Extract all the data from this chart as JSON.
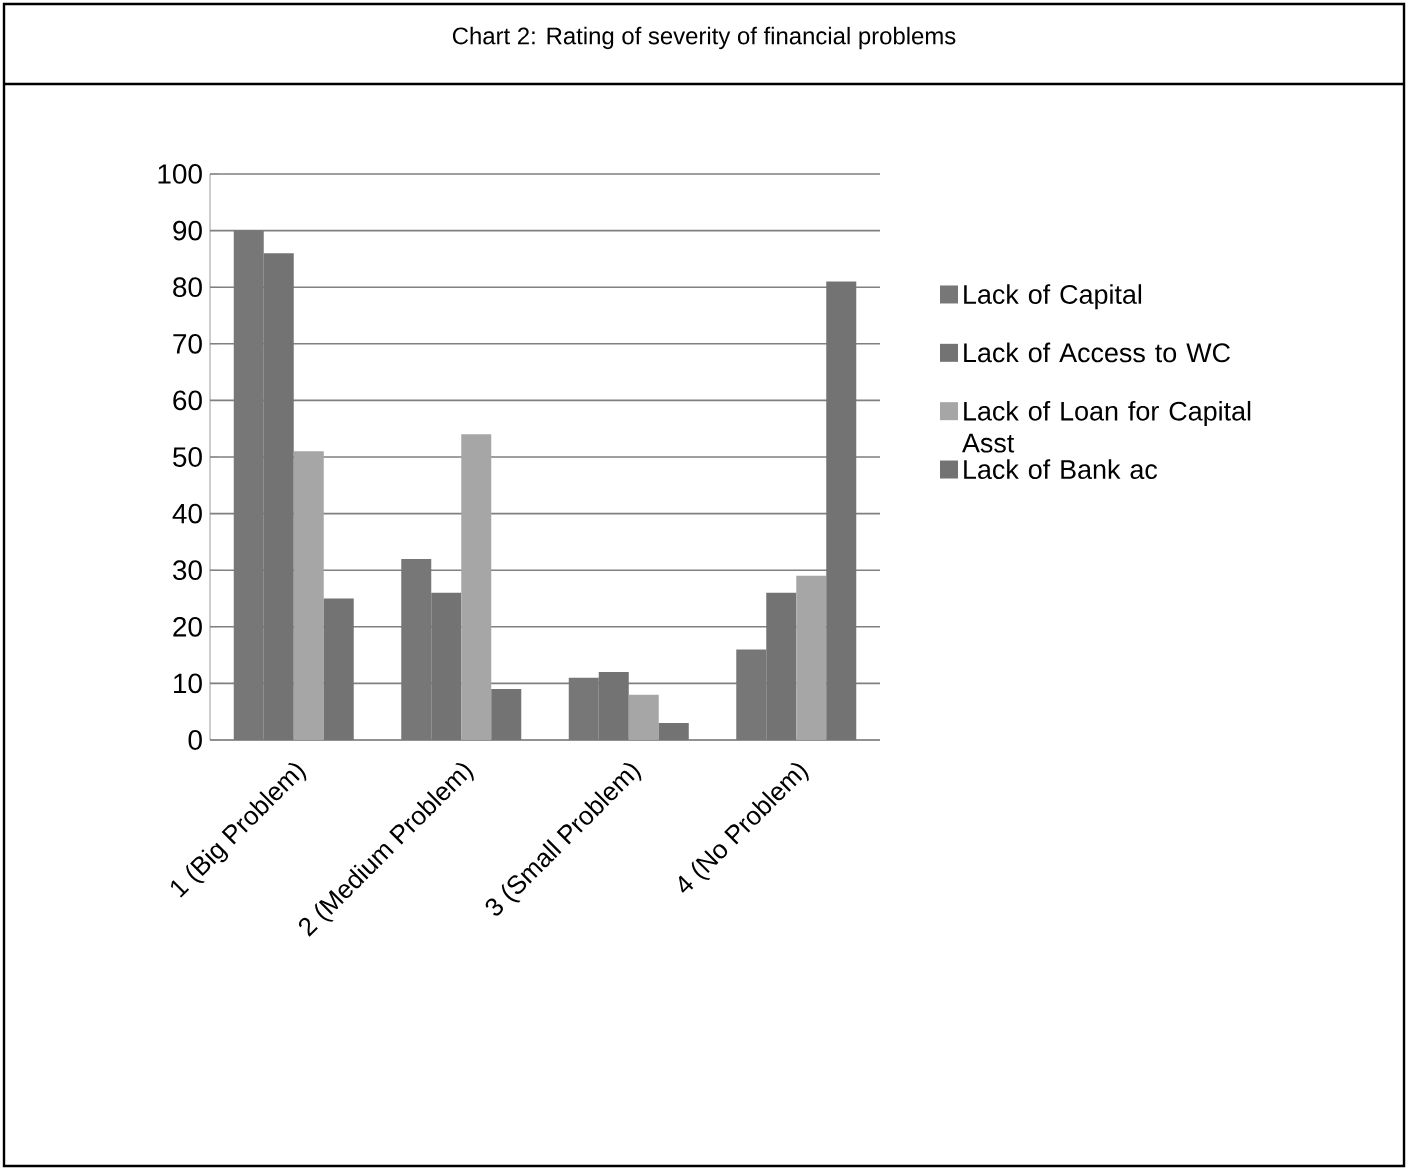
{
  "chart_data": {
    "type": "bar",
    "title": "Chart 2: Rating of severity of financial problems",
    "categories": [
      "1 (Big Problem)",
      "2 (Medium Problem)",
      "3 (Small Problem)",
      "4 (No Problem)"
    ],
    "series": [
      {
        "name": "Lack of Capital",
        "color": "#777777",
        "values": [
          90,
          32,
          11,
          16
        ]
      },
      {
        "name": "Lack of Access to WC",
        "color": "#737373",
        "values": [
          86,
          26,
          12,
          26
        ]
      },
      {
        "name": "Lack of Loan for Capital Asst",
        "color": "#a6a6a6",
        "values": [
          51,
          54,
          8,
          29
        ]
      },
      {
        "name": "Lack of Bank ac",
        "color": "#737373",
        "values": [
          25,
          9,
          3,
          81
        ]
      }
    ],
    "ylim": [
      0,
      100
    ],
    "yticks": [
      0,
      10,
      20,
      30,
      40,
      50,
      60,
      70,
      80,
      90,
      100
    ],
    "grid": "y",
    "legend": "right"
  }
}
